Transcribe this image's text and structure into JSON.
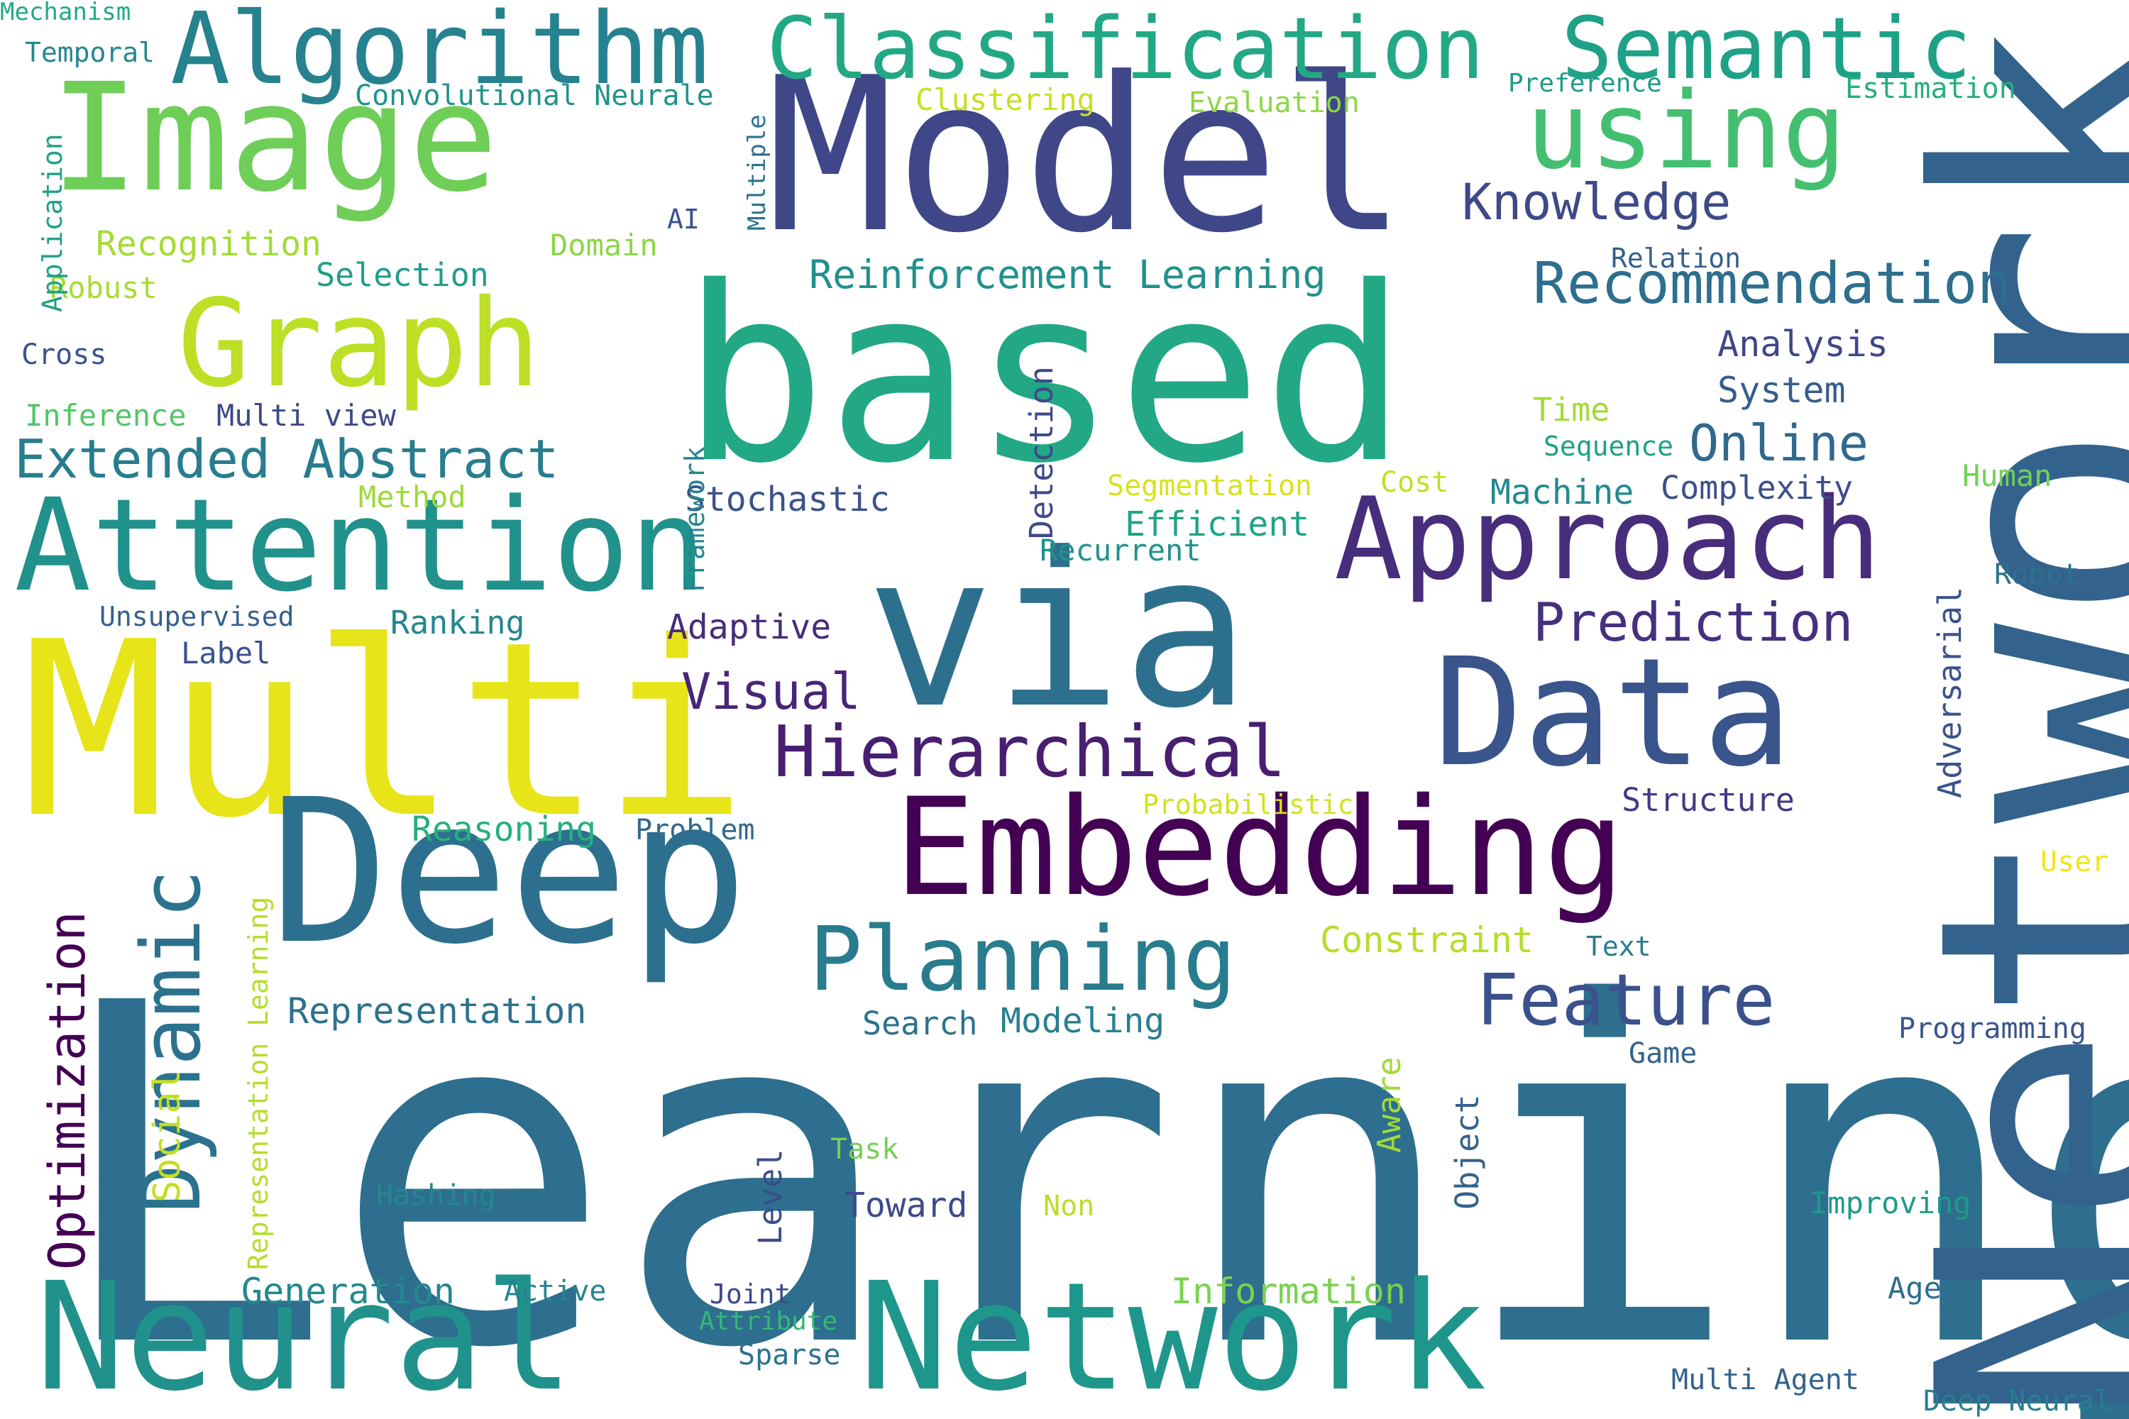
{
  "words": [
    {
      "text": "Learning",
      "color": "#2e6e8e",
      "vertical": false
    },
    {
      "text": "Network",
      "color": "#33638d",
      "vertical": true
    },
    {
      "text": "Multi",
      "color": "#e7e419",
      "vertical": false
    },
    {
      "text": "based",
      "color": "#22a884",
      "vertical": false
    },
    {
      "text": "Model",
      "color": "#3f4788",
      "vertical": false
    },
    {
      "text": "via",
      "color": "#2d708e",
      "vertical": false
    },
    {
      "text": "Deep",
      "color": "#2d6f8e",
      "vertical": false
    },
    {
      "text": "Image",
      "color": "#6ece58",
      "vertical": false
    },
    {
      "text": "Neural",
      "color": "#21918c",
      "vertical": false
    },
    {
      "text": "Network",
      "color": "#1f968b",
      "vertical": false
    },
    {
      "text": "Data",
      "color": "#3a548c",
      "vertical": false
    },
    {
      "text": "Embedding",
      "color": "#440154",
      "vertical": false
    },
    {
      "text": "Attention",
      "color": "#21918c",
      "vertical": false
    },
    {
      "text": "Graph",
      "color": "#bddf26",
      "vertical": false
    },
    {
      "text": "Approach",
      "color": "#472d7b",
      "vertical": false
    },
    {
      "text": "using",
      "color": "#44bf70",
      "vertical": false
    },
    {
      "text": "Algorithm",
      "color": "#26828e",
      "vertical": false
    },
    {
      "text": "Classification",
      "color": "#22a884",
      "vertical": false
    },
    {
      "text": "Semantic",
      "color": "#1fa187",
      "vertical": false
    },
    {
      "text": "Planning",
      "color": "#287c8e",
      "vertical": false
    },
    {
      "text": "Dynamic",
      "color": "#2c728e",
      "vertical": true
    },
    {
      "text": "Hierarchical",
      "color": "#481f70",
      "vertical": false
    },
    {
      "text": "Feature",
      "color": "#3b518b",
      "vertical": false
    },
    {
      "text": "Recommendation",
      "color": "#2e6e8e",
      "vertical": false
    },
    {
      "text": "Extended Abstract",
      "color": "#287d8e",
      "vertical": false
    },
    {
      "text": "Prediction",
      "color": "#46307e",
      "vertical": false
    },
    {
      "text": "Knowledge",
      "color": "#3e4989",
      "vertical": false
    },
    {
      "text": "Optimization",
      "color": "#440154",
      "vertical": true
    },
    {
      "text": "Online",
      "color": "#31688e",
      "vertical": false
    },
    {
      "text": "Visual",
      "color": "#482576",
      "vertical": false
    },
    {
      "text": "Reinforcement Learning",
      "color": "#21908d",
      "vertical": false
    },
    {
      "text": "Representation",
      "color": "#2c728e",
      "vertical": false
    },
    {
      "text": "Recognition",
      "color": "#a5db36",
      "vertical": false
    },
    {
      "text": "Analysis",
      "color": "#404688",
      "vertical": false
    },
    {
      "text": "System",
      "color": "#365c8d",
      "vertical": false
    },
    {
      "text": "Stochastic",
      "color": "#3b528b",
      "vertical": false
    },
    {
      "text": "Adaptive",
      "color": "#472c7a",
      "vertical": false
    },
    {
      "text": "Efficient",
      "color": "#20a386",
      "vertical": false
    },
    {
      "text": "Ranking",
      "color": "#25858e",
      "vertical": false
    },
    {
      "text": "Machine",
      "color": "#23898e",
      "vertical": false
    },
    {
      "text": "Complexity",
      "color": "#3d4e8a",
      "vertical": false
    },
    {
      "text": "Reasoning",
      "color": "#29af7f",
      "vertical": false
    },
    {
      "text": "Detection",
      "color": "#3e4a89",
      "vertical": true
    },
    {
      "text": "Convolutional Neurale",
      "color": "#20928c",
      "vertical": false
    },
    {
      "text": "Generation",
      "color": "#23898e",
      "vertical": false
    },
    {
      "text": "Information",
      "color": "#7ad151",
      "vertical": false
    },
    {
      "text": "Modeling",
      "color": "#27808e",
      "vertical": false
    },
    {
      "text": "Search",
      "color": "#2c718e",
      "vertical": false
    },
    {
      "text": "Structure",
      "color": "#443983",
      "vertical": false
    },
    {
      "text": "Constraint",
      "color": "#b5de2b",
      "vertical": false
    },
    {
      "text": "Adversarial",
      "color": "#3b528b",
      "vertical": true
    },
    {
      "text": "Selection",
      "color": "#1f9e89",
      "vertical": false
    },
    {
      "text": "Multi view",
      "color": "#3e4989",
      "vertical": false
    },
    {
      "text": "Social",
      "color": "#c2df23",
      "vertical": true
    },
    {
      "text": "Level",
      "color": "#3d4d8a",
      "vertical": true
    },
    {
      "text": "Aware",
      "color": "#a0da39",
      "vertical": true
    },
    {
      "text": "Object",
      "color": "#33638d",
      "vertical": true
    },
    {
      "text": "Toward",
      "color": "#3e4989",
      "vertical": false
    },
    {
      "text": "Improving",
      "color": "#1f9a8a",
      "vertical": false
    },
    {
      "text": "Framework",
      "color": "#25848e",
      "vertical": true
    },
    {
      "text": "Multi Agent",
      "color": "#33638d",
      "vertical": false
    },
    {
      "text": "Programming",
      "color": "#3a548c",
      "vertical": false
    },
    {
      "text": "Evaluation",
      "color": "#8ed645",
      "vertical": false
    },
    {
      "text": "Estimation",
      "color": "#26ad81",
      "vertical": false
    },
    {
      "text": "Clustering",
      "color": "#c8e020",
      "vertical": false
    },
    {
      "text": "Preference",
      "color": "#1f9a8a",
      "vertical": false
    },
    {
      "text": "Robust",
      "color": "#a8db34",
      "vertical": false
    },
    {
      "text": "Domain",
      "color": "#8bd646",
      "vertical": false
    },
    {
      "text": "Inference",
      "color": "#54c568",
      "vertical": false
    },
    {
      "text": "Method",
      "color": "#9dd93b",
      "vertical": false
    },
    {
      "text": "Unsupervised",
      "color": "#355f8d",
      "vertical": false
    },
    {
      "text": "Label",
      "color": "#3b528b",
      "vertical": false
    },
    {
      "text": "Segmentation",
      "color": "#d8e219",
      "vertical": false
    },
    {
      "text": "Cost",
      "color": "#c0df25",
      "vertical": false
    },
    {
      "text": "Time",
      "color": "#a2da37",
      "vertical": false
    },
    {
      "text": "Sequence",
      "color": "#1fa088",
      "vertical": false
    },
    {
      "text": "Relation",
      "color": "#355f8d",
      "vertical": false
    },
    {
      "text": "Human",
      "color": "#73d056",
      "vertical": false
    },
    {
      "text": "Robot",
      "color": "#2d718e",
      "vertical": false
    },
    {
      "text": "Recurrent",
      "color": "#20928c",
      "vertical": false
    },
    {
      "text": "Probabilistic",
      "color": "#d2e21b",
      "vertical": false
    },
    {
      "text": "Problem",
      "color": "#31688e",
      "vertical": false
    },
    {
      "text": "Representation Learning",
      "color": "#b5de2b",
      "vertical": true
    },
    {
      "text": "Text",
      "color": "#287c8e",
      "vertical": false
    },
    {
      "text": "User",
      "color": "#f1e51d",
      "vertical": false
    },
    {
      "text": "Game",
      "color": "#33638d",
      "vertical": false
    },
    {
      "text": "Task",
      "color": "#75d054",
      "vertical": false
    },
    {
      "text": "Non",
      "color": "#b8de29",
      "vertical": false
    },
    {
      "text": "Hashing",
      "color": "#24878e",
      "vertical": false
    },
    {
      "text": "Active",
      "color": "#25848e",
      "vertical": false
    },
    {
      "text": "Joint",
      "color": "#3e4989",
      "vertical": false
    },
    {
      "text": "Attribute",
      "color": "#35b779",
      "vertical": false
    },
    {
      "text": "Sparse",
      "color": "#2c728e",
      "vertical": false
    },
    {
      "text": "Agent",
      "color": "#2e6e8e",
      "vertical": false
    },
    {
      "text": "Deep Neural",
      "color": "#277f8e",
      "vertical": false
    },
    {
      "text": "Mechanism",
      "color": "#22a884",
      "vertical": false
    },
    {
      "text": "Temporal",
      "color": "#24878e",
      "vertical": false
    },
    {
      "text": "Application",
      "color": "#1fa187",
      "vertical": true
    },
    {
      "text": "Cross",
      "color": "#3b528b",
      "vertical": false
    },
    {
      "text": "AI",
      "color": "#3b528b",
      "vertical": false
    },
    {
      "text": "Multiple",
      "color": "#2c728e",
      "vertical": true
    }
  ]
}
